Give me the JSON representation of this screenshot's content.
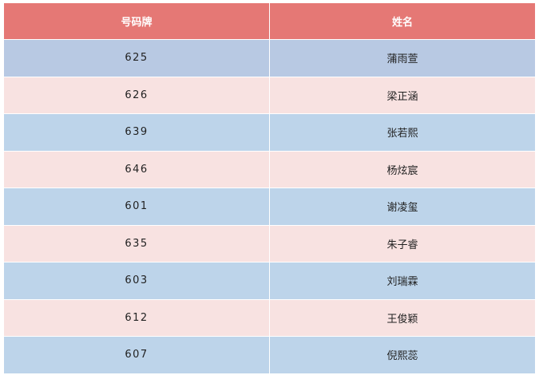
{
  "table": {
    "headers": [
      "号码牌",
      "姓名"
    ],
    "rows": [
      {
        "number": "625",
        "name": "蒲雨萱"
      },
      {
        "number": "626",
        "name": "梁正涵"
      },
      {
        "number": "639",
        "name": "张若熙"
      },
      {
        "number": "646",
        "name": "杨炫宸"
      },
      {
        "number": "601",
        "name": "谢凌玺"
      },
      {
        "number": "635",
        "name": "朱子睿"
      },
      {
        "number": "603",
        "name": "刘瑞霖"
      },
      {
        "number": "612",
        "name": "王俊颖"
      },
      {
        "number": "607",
        "name": "倪熙蕊"
      }
    ]
  },
  "colors": {
    "header": "#e57875",
    "row_blue": "#bdd4ea",
    "row_pink": "#f8e2e1",
    "row_highlight": "#b8c9e3"
  }
}
